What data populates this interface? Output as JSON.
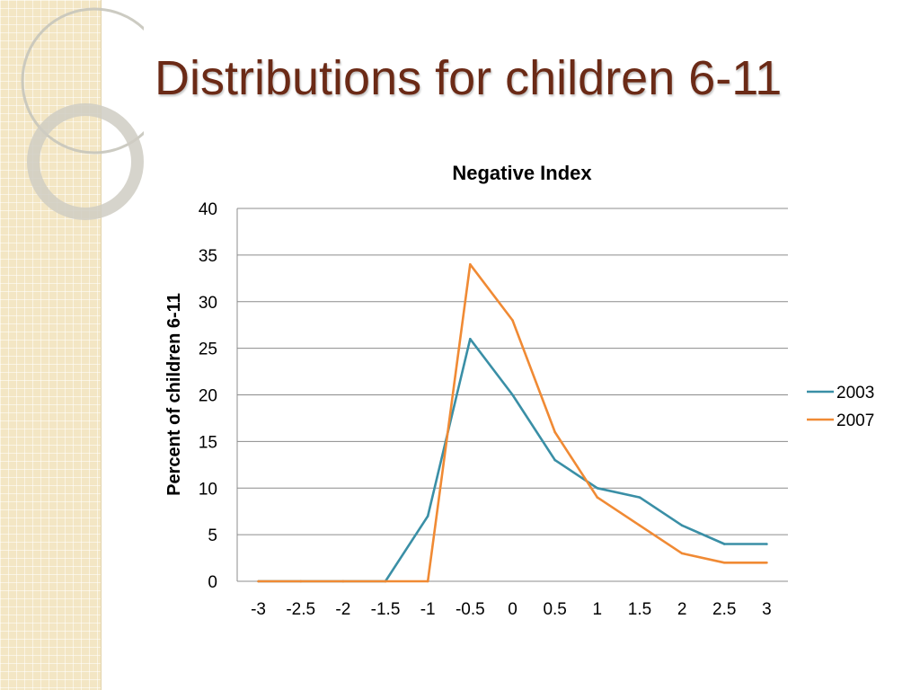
{
  "slide": {
    "title": "Distributions for children 6-11"
  },
  "colors": {
    "title": "#6b2a16",
    "side_band": "#f3e6c4",
    "series_2003": "#3a8fa6",
    "series_2007": "#f08a34",
    "gridline": "#8c8c8c"
  },
  "chart_data": {
    "type": "line",
    "title": "Negative Index",
    "xlabel": "",
    "ylabel": "Percent of children 6-11",
    "categories": [
      "-3",
      "-2.5",
      "-2",
      "-1.5",
      "-1",
      "-0.5",
      "0",
      "0.5",
      "1",
      "1.5",
      "2",
      "2.5",
      "3"
    ],
    "ylim": [
      0,
      40
    ],
    "yticks": [
      0,
      5,
      10,
      15,
      20,
      25,
      30,
      35,
      40
    ],
    "grid": true,
    "legend_position": "right",
    "series": [
      {
        "name": "2003",
        "color": "#3a8fa6",
        "values": [
          0,
          0,
          0,
          0,
          7,
          26,
          20,
          13,
          10,
          9,
          6,
          4,
          4
        ]
      },
      {
        "name": "2007",
        "color": "#f08a34",
        "values": [
          0,
          0,
          0,
          0,
          0,
          34,
          28,
          16,
          9,
          6,
          3,
          2,
          2
        ]
      }
    ]
  }
}
